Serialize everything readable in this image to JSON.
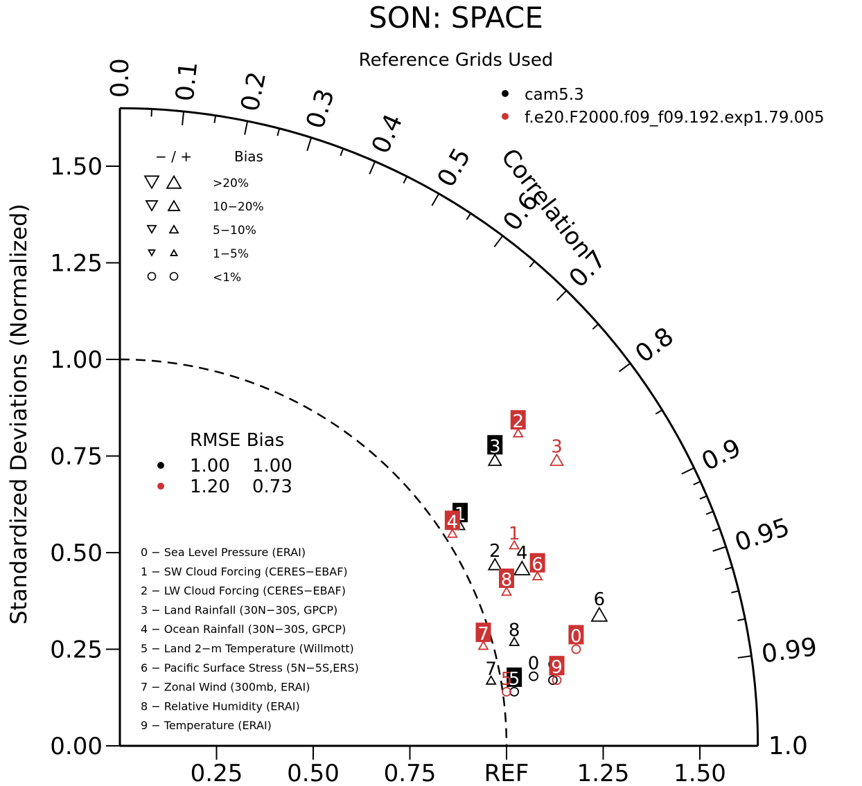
{
  "title": "SON: SPACE",
  "subtitle": "Reference Grids Used",
  "colors": {
    "black": "#000000",
    "red": "#cc3333"
  },
  "chart_data": {
    "type": "scatter",
    "subtype": "taylor-diagram",
    "title": "SON: SPACE",
    "subtitle": "Reference Grids Used",
    "ylabel": "Standardized Deviations (Normalized)",
    "arc_label": "Correlation",
    "ref_label": "REF",
    "x_tick_labels": [
      "0.25",
      "0.50",
      "0.75",
      "REF",
      "1.25",
      "1.50"
    ],
    "x_ticks": [
      0.25,
      0.5,
      0.75,
      1.0,
      1.25,
      1.5
    ],
    "y_tick_labels": [
      "0.00",
      "0.25",
      "0.50",
      "0.75",
      "1.00",
      "1.25",
      "1.50"
    ],
    "y_ticks": [
      0,
      0.25,
      0.5,
      0.75,
      1.0,
      1.25,
      1.5
    ],
    "corr_labels": [
      "0.0",
      "0.1",
      "0.2",
      "0.3",
      "0.4",
      "0.5",
      "0.6",
      "0.7",
      "0.8",
      "0.9",
      "0.95",
      "0.99",
      "1.0"
    ],
    "corr_ticks": [
      0.0,
      0.1,
      0.2,
      0.3,
      0.4,
      0.5,
      0.6,
      0.7,
      0.8,
      0.9,
      0.95,
      0.99,
      1.0
    ],
    "corr_minor_ticks": [
      0.05,
      0.15,
      0.25,
      0.35,
      0.45,
      0.55,
      0.65,
      0.75,
      0.85,
      0.91,
      0.92,
      0.93,
      0.94,
      0.96,
      0.97,
      0.98
    ],
    "xlim": [
      0,
      1.65
    ],
    "ylim": [
      0,
      1.65
    ],
    "series": [
      {
        "name": "cam5.3",
        "color": "#000000",
        "points": [
          {
            "label": "0",
            "x": 1.07,
            "y": 0.18,
            "marker": "circle",
            "size": "small",
            "boxed": false
          },
          {
            "label": "1",
            "x": 0.88,
            "y": 0.57,
            "marker": "triangle-up",
            "size": "small",
            "boxed": true
          },
          {
            "label": "2",
            "x": 0.97,
            "y": 0.47,
            "marker": "triangle-up",
            "size": "medium",
            "boxed": false
          },
          {
            "label": "3",
            "x": 0.97,
            "y": 0.74,
            "marker": "triangle-up",
            "size": "medium",
            "boxed": true
          },
          {
            "label": "4",
            "x": 1.04,
            "y": 0.46,
            "marker": "triangle-up",
            "size": "large",
            "boxed": false
          },
          {
            "label": "5",
            "x": 1.02,
            "y": 0.14,
            "marker": "circle",
            "size": "small",
            "boxed": true
          },
          {
            "label": "6",
            "x": 1.24,
            "y": 0.34,
            "marker": "triangle-up",
            "size": "large",
            "boxed": false
          },
          {
            "label": "7",
            "x": 0.96,
            "y": 0.17,
            "marker": "triangle-up",
            "size": "small",
            "boxed": false
          },
          {
            "label": "8",
            "x": 1.02,
            "y": 0.27,
            "marker": "triangle-up",
            "size": "small",
            "boxed": false
          },
          {
            "label": "9",
            "x": 1.12,
            "y": 0.17,
            "marker": "circle",
            "size": "small",
            "boxed": false
          }
        ]
      },
      {
        "name": "f.e20.F2000.f09_f09.192.exp1.79.005",
        "color": "#cc3333",
        "points": [
          {
            "label": "0",
            "x": 1.18,
            "y": 0.25,
            "marker": "circle",
            "size": "small",
            "boxed": true
          },
          {
            "label": "1",
            "x": 1.02,
            "y": 0.52,
            "marker": "triangle-up",
            "size": "small",
            "boxed": false
          },
          {
            "label": "2",
            "x": 1.03,
            "y": 0.81,
            "marker": "triangle-up",
            "size": "small",
            "boxed": true
          },
          {
            "label": "3",
            "x": 1.13,
            "y": 0.74,
            "marker": "triangle-up",
            "size": "medium",
            "boxed": false
          },
          {
            "label": "4",
            "x": 0.86,
            "y": 0.55,
            "marker": "triangle-up",
            "size": "small",
            "boxed": true
          },
          {
            "label": "5",
            "x": 1.0,
            "y": 0.14,
            "marker": "circle",
            "size": "small",
            "boxed": false
          },
          {
            "label": "6",
            "x": 1.08,
            "y": 0.44,
            "marker": "triangle-up",
            "size": "small",
            "boxed": true
          },
          {
            "label": "7",
            "x": 0.94,
            "y": 0.26,
            "marker": "triangle-up",
            "size": "small",
            "boxed": true
          },
          {
            "label": "8",
            "x": 1.0,
            "y": 0.4,
            "marker": "triangle-up",
            "size": "small",
            "boxed": true
          },
          {
            "label": "9",
            "x": 1.13,
            "y": 0.17,
            "marker": "circle",
            "size": "small",
            "boxed": true
          }
        ]
      }
    ],
    "legend_series": [
      "cam5.3",
      "f.e20.F2000.f09_f09.192.exp1.79.005"
    ],
    "bias_legend": {
      "header_sign": "−  /  +",
      "header_label": "Bias",
      "rows": [
        {
          "label": ">20%",
          "marker": "triangle",
          "size": "large"
        },
        {
          "label": "10−20%",
          "marker": "triangle",
          "size": "medium"
        },
        {
          "label": "5−10%",
          "marker": "triangle",
          "size": "small"
        },
        {
          "label": "1−5%",
          "marker": "triangle",
          "size": "tiny"
        },
        {
          "label": "<1%",
          "marker": "circle",
          "size": "small"
        }
      ]
    },
    "rmse_table": {
      "header": "RMSE  Bias",
      "rows": [
        {
          "color": "#000000",
          "rmse": "1.00",
          "bias": "1.00"
        },
        {
          "color": "#cc3333",
          "rmse": "1.20",
          "bias": "0.73"
        }
      ]
    },
    "variables": [
      "0 − Sea Level Pressure (ERAI)",
      "1 − SW Cloud Forcing (CERES−EBAF)",
      "2 − LW Cloud Forcing (CERES−EBAF)",
      "3 − Land Rainfall (30N−30S, GPCP)",
      "4 − Ocean Rainfall (30N−30S, GPCP)",
      "5 − Land 2−m Temperature (Willmott)",
      "6 − Pacific Surface Stress (5N−5S,ERS)",
      "7 − Zonal Wind (300mb, ERAI)",
      "8 − Relative Humidity (ERAI)",
      "9 − Temperature (ERAI)"
    ]
  }
}
